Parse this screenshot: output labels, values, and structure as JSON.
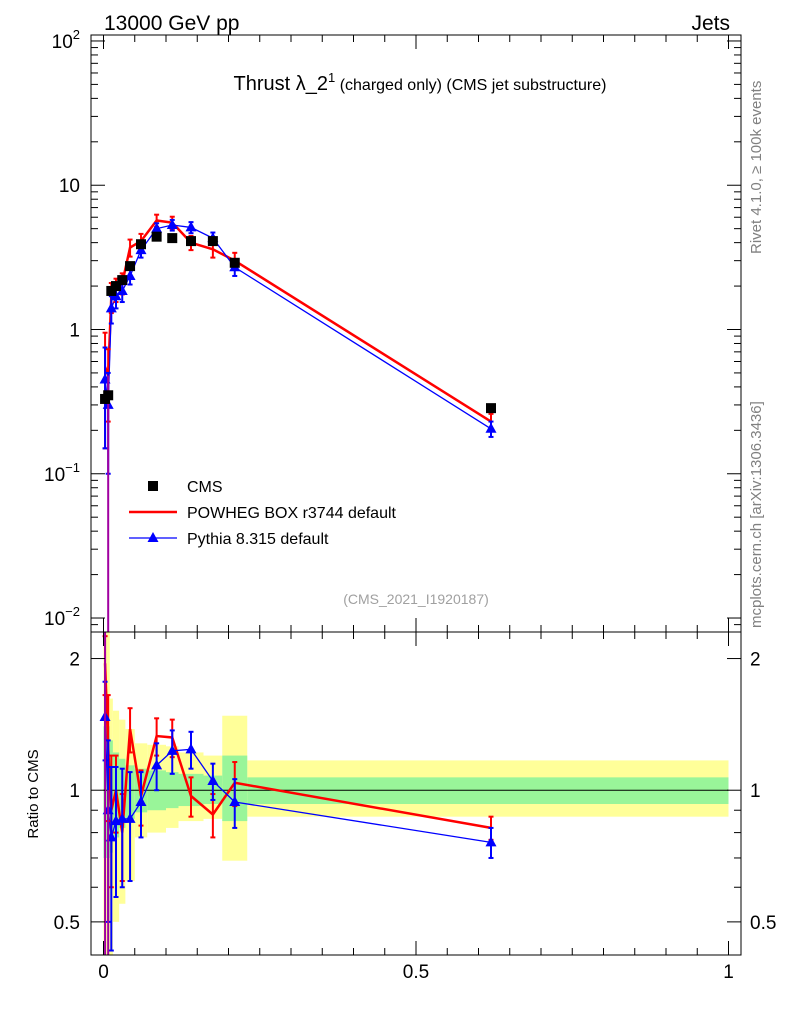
{
  "header": {
    "left": "13000 GeV pp",
    "right": "Jets"
  },
  "side_labels": {
    "rivet": "Rivet 4.1.0, ≥ 100k events",
    "mcplots": "mcplots.cern.ch [arXiv:1306.3436]"
  },
  "chart_data": [
    {
      "type": "scatter",
      "title": "Thrust λ_2",
      "title_sup": "1",
      "title_suffix": " (charged only) (CMS jet substructure)",
      "watermark": "(CMS_2021_I1920187)",
      "yscale": "log",
      "xlim": [
        -0.02,
        1.02
      ],
      "ylim": [
        0.008,
        110
      ],
      "ytick_labels": [
        {
          "base": "10",
          "exp": "2"
        },
        {
          "base": "10",
          "exp": ""
        },
        {
          "base": "1",
          "exp": ""
        },
        {
          "base": "10",
          "exp": "−1"
        },
        {
          "base": "10",
          "exp": "−2"
        }
      ],
      "ytick_values": [
        100,
        10,
        1,
        0.1,
        0.01
      ],
      "legend_position": "bottom-left",
      "legend": [
        "CMS",
        "POWHEG BOX r3744 default",
        "Pythia 8.315 default"
      ],
      "colors": {
        "data": "#000000",
        "powheg": "#ff0000",
        "pythia": "#0000ff"
      },
      "x": [
        0.0025,
        0.0075,
        0.0125,
        0.02,
        0.03,
        0.0425,
        0.06,
        0.085,
        0.11,
        0.14,
        0.175,
        0.21,
        0.62
      ],
      "series": [
        {
          "name": "CMS",
          "values": [
            0.33,
            0.35,
            1.85,
            2.0,
            2.2,
            2.75,
            3.9,
            4.4,
            4.3,
            4.1,
            4.1,
            2.9,
            0.285
          ]
        },
        {
          "name": "POWHEG BOX r3744 default",
          "values": [
            0.55,
            0.48,
            1.7,
            1.9,
            2.1,
            3.7,
            4.1,
            5.7,
            5.5,
            4.0,
            3.6,
            3.0,
            0.23
          ],
          "errors": [
            0.4,
            0.25,
            0.4,
            0.35,
            0.35,
            0.5,
            0.5,
            0.55,
            0.55,
            0.45,
            0.45,
            0.4,
            0.03
          ]
        },
        {
          "name": "Pythia 8.315 default",
          "values": [
            0.45,
            0.3,
            1.4,
            1.7,
            1.85,
            2.35,
            3.55,
            5.0,
            5.3,
            5.1,
            4.3,
            2.7,
            0.205
          ],
          "errors": [
            0.3,
            0.2,
            0.3,
            0.3,
            0.3,
            0.3,
            0.4,
            0.45,
            0.45,
            0.45,
            0.4,
            0.35,
            0.025
          ]
        }
      ]
    },
    {
      "type": "line",
      "ylabel": "Ratio to CMS",
      "xlim": [
        -0.02,
        1.02
      ],
      "ylim": [
        0.42,
        2.3
      ],
      "yticks": [
        0.5,
        1,
        2
      ],
      "ytick_labels": [
        "0.5",
        "1",
        "2"
      ],
      "xticks": [
        0,
        0.5,
        1
      ],
      "xtick_labels": [
        "0",
        "0.5",
        "1"
      ],
      "bands": {
        "bin_edges": [
          0,
          0.005,
          0.01,
          0.015,
          0.025,
          0.035,
          0.05,
          0.07,
          0.1,
          0.12,
          0.16,
          0.19,
          0.23,
          1.0
        ],
        "yellow_low": [
          0.42,
          0.42,
          0.42,
          0.5,
          0.55,
          0.62,
          0.78,
          0.8,
          0.82,
          0.85,
          0.86,
          0.69,
          0.87
        ],
        "yellow_high": [
          2.3,
          2.3,
          1.62,
          1.52,
          1.45,
          1.38,
          1.28,
          1.27,
          1.26,
          1.22,
          1.2,
          1.48,
          1.17
        ],
        "green_low": [
          0.7,
          0.7,
          0.72,
          0.78,
          0.82,
          0.86,
          0.89,
          0.9,
          0.91,
          0.92,
          0.93,
          0.85,
          0.93
        ],
        "green_high": [
          1.4,
          1.4,
          1.3,
          1.22,
          1.18,
          1.14,
          1.12,
          1.11,
          1.1,
          1.09,
          1.08,
          1.2,
          1.07
        ]
      },
      "x": [
        0.0025,
        0.0075,
        0.0125,
        0.02,
        0.03,
        0.0425,
        0.06,
        0.085,
        0.11,
        0.14,
        0.175,
        0.21,
        0.62
      ],
      "series": [
        {
          "name": "POWHEG BOX r3744 default",
          "values": [
            1.95,
            1.25,
            0.9,
            1.0,
            0.8,
            1.38,
            0.97,
            1.33,
            1.32,
            0.97,
            0.88,
            1.04,
            0.82
          ],
          "errors": [
            0.3,
            0.4,
            0.3,
            0.2,
            0.18,
            0.16,
            0.14,
            0.13,
            0.13,
            0.1,
            0.1,
            0.12,
            0.05
          ]
        },
        {
          "name": "Pythia 8.315 default",
          "values": [
            1.47,
            0.9,
            0.78,
            0.85,
            0.86,
            0.86,
            0.94,
            1.14,
            1.23,
            1.24,
            1.05,
            0.94,
            0.76
          ],
          "errors": [
            0.3,
            0.4,
            0.35,
            0.28,
            0.26,
            0.24,
            0.16,
            0.14,
            0.14,
            0.12,
            0.1,
            0.12,
            0.06
          ]
        }
      ]
    }
  ]
}
